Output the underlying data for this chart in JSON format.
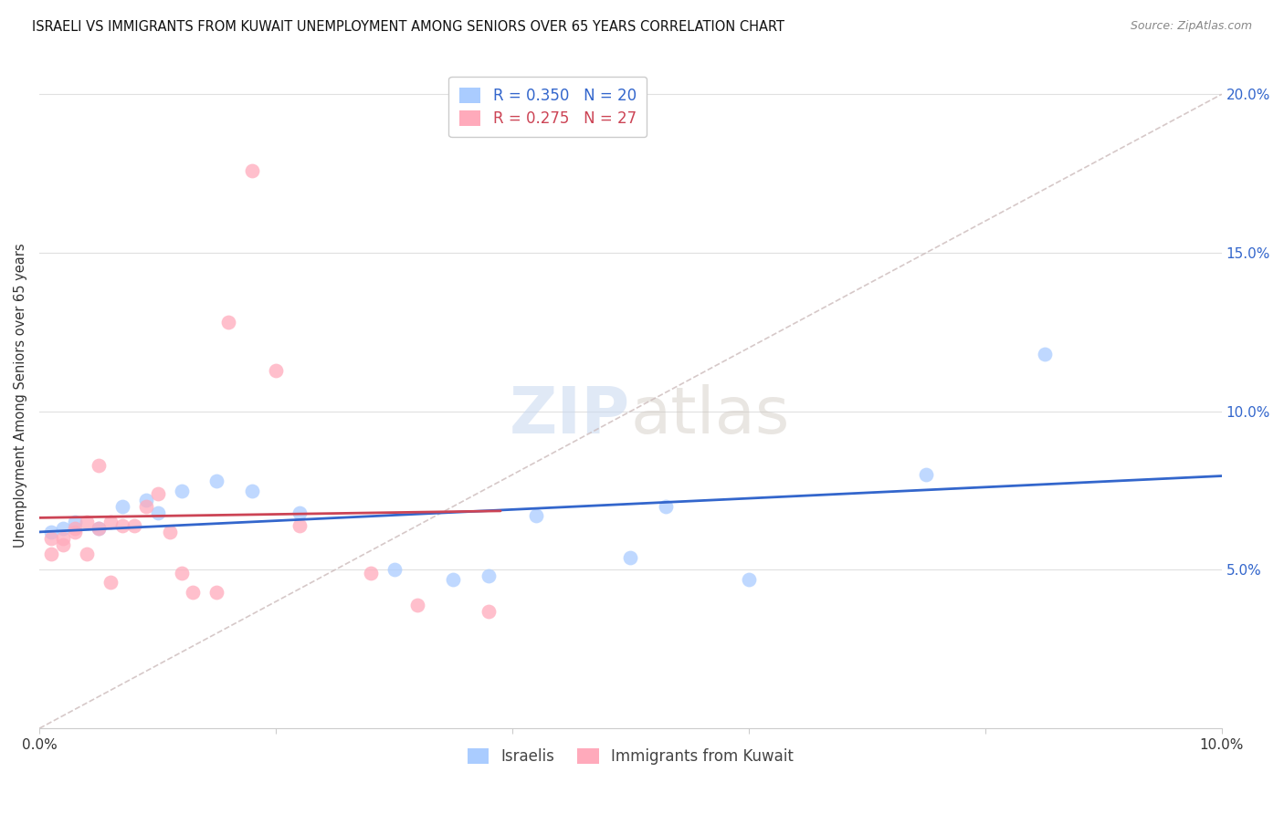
{
  "title": "ISRAELI VS IMMIGRANTS FROM KUWAIT UNEMPLOYMENT AMONG SENIORS OVER 65 YEARS CORRELATION CHART",
  "source": "Source: ZipAtlas.com",
  "ylabel": "Unemployment Among Seniors over 65 years",
  "r_israeli": 0.35,
  "n_israeli": 20,
  "r_kuwait": 0.275,
  "n_kuwait": 27,
  "israeli_x": [
    0.001,
    0.002,
    0.003,
    0.005,
    0.007,
    0.009,
    0.01,
    0.012,
    0.015,
    0.018,
    0.022,
    0.03,
    0.035,
    0.038,
    0.042,
    0.05,
    0.053,
    0.06,
    0.075,
    0.085
  ],
  "israeli_y": [
    0.062,
    0.063,
    0.065,
    0.063,
    0.07,
    0.072,
    0.068,
    0.075,
    0.078,
    0.075,
    0.068,
    0.05,
    0.047,
    0.048,
    0.067,
    0.054,
    0.07,
    0.047,
    0.08,
    0.118
  ],
  "kuwait_x": [
    0.001,
    0.001,
    0.002,
    0.002,
    0.003,
    0.003,
    0.004,
    0.004,
    0.005,
    0.005,
    0.006,
    0.006,
    0.007,
    0.008,
    0.009,
    0.01,
    0.011,
    0.012,
    0.013,
    0.015,
    0.016,
    0.018,
    0.02,
    0.022,
    0.028,
    0.032,
    0.038
  ],
  "kuwait_y": [
    0.06,
    0.055,
    0.058,
    0.06,
    0.062,
    0.063,
    0.065,
    0.055,
    0.063,
    0.083,
    0.065,
    0.046,
    0.064,
    0.064,
    0.07,
    0.074,
    0.062,
    0.049,
    0.043,
    0.043,
    0.128,
    0.176,
    0.113,
    0.064,
    0.049,
    0.039,
    0.037
  ],
  "xlim": [
    0.0,
    0.1
  ],
  "ylim": [
    0.0,
    0.21
  ],
  "yticks": [
    0.0,
    0.05,
    0.1,
    0.15,
    0.2
  ],
  "xticks": [
    0.0,
    0.02,
    0.04,
    0.06,
    0.08,
    0.1
  ],
  "color_israeli": "#aaccff",
  "color_kuwait": "#ffaabb",
  "color_line_israeli": "#3366cc",
  "color_line_kuwait": "#cc4455",
  "background_color": "#ffffff",
  "watermark_zip": "ZIP",
  "watermark_atlas": "atlas",
  "marker_size": 130,
  "diag_line_color": "#ccbbbb",
  "grid_color": "#e0e0e0"
}
